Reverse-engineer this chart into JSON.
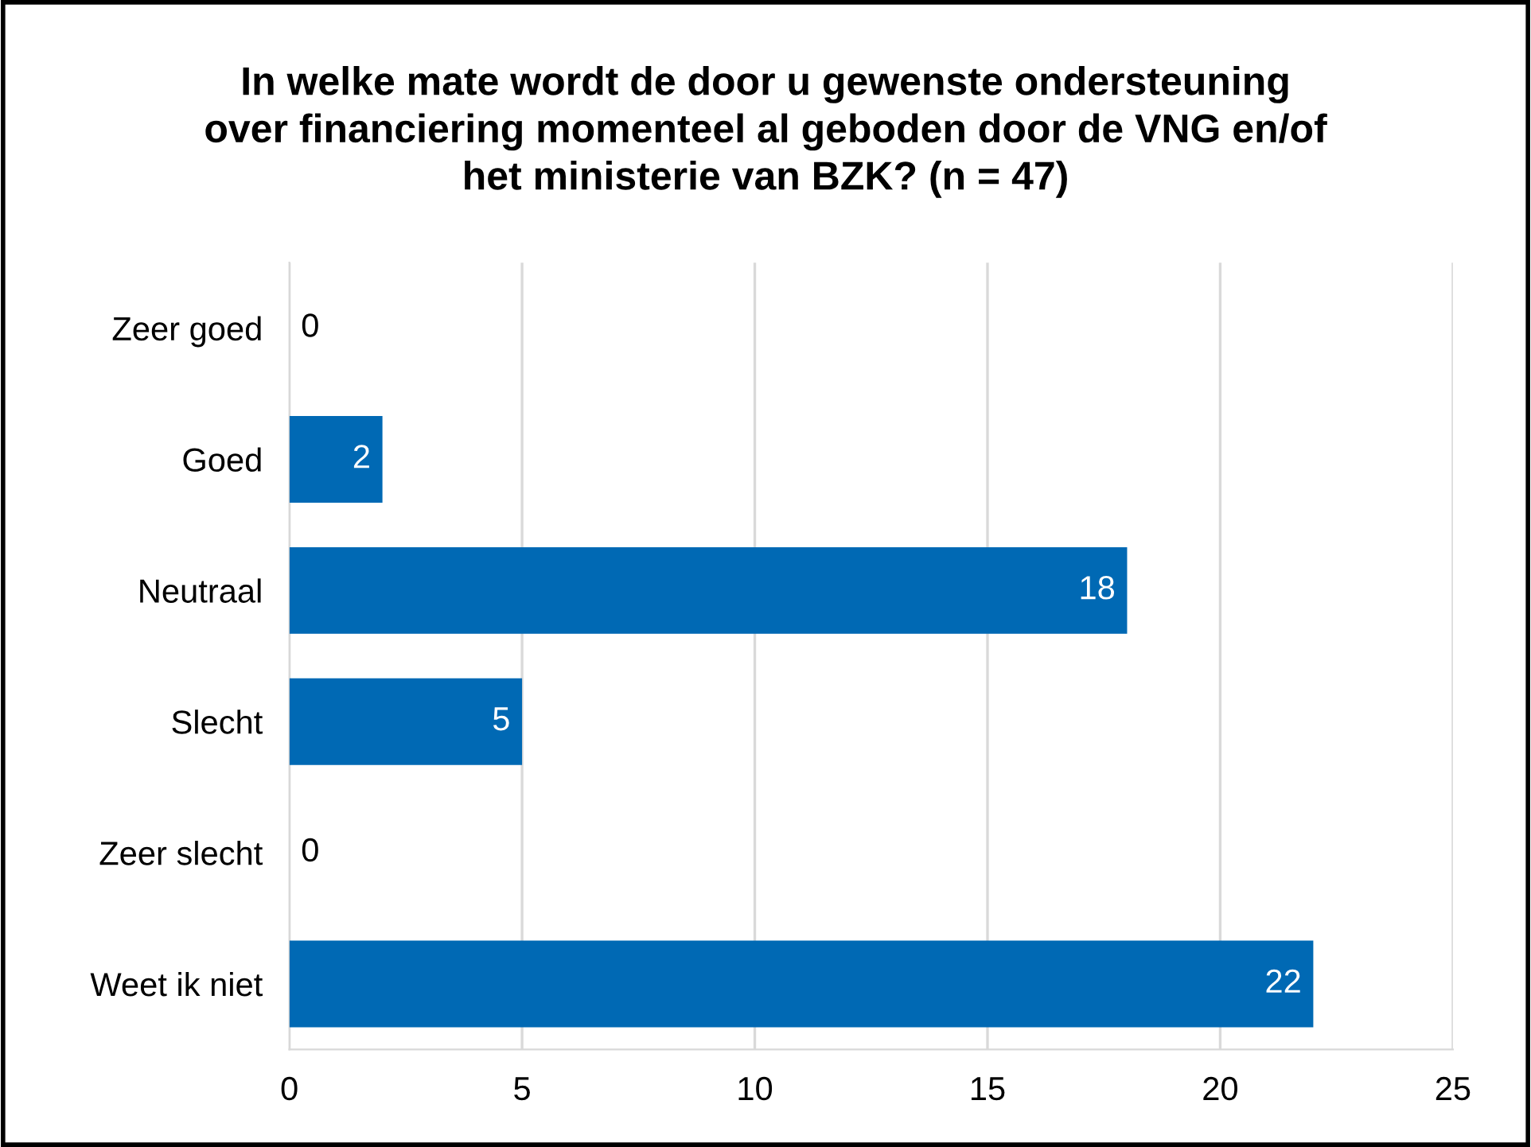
{
  "chart_data": {
    "type": "bar",
    "orientation": "horizontal",
    "title": "In welke mate wordt de door u gewenste ondersteuning\nover financiering momenteel al geboden door de VNG en/of\nhet ministerie van BZK? (n = 47)",
    "categories": [
      "Zeer goed",
      "Goed",
      "Neutraal",
      "Slecht",
      "Zeer slecht",
      "Weet ik niet"
    ],
    "values": [
      0,
      2,
      18,
      5,
      0,
      22
    ],
    "color": "#0069b4",
    "xlim": [
      0,
      25
    ],
    "xticks": [
      0,
      5,
      10,
      15,
      20,
      25
    ],
    "grid": "x",
    "data_labels": true,
    "legend": false
  }
}
